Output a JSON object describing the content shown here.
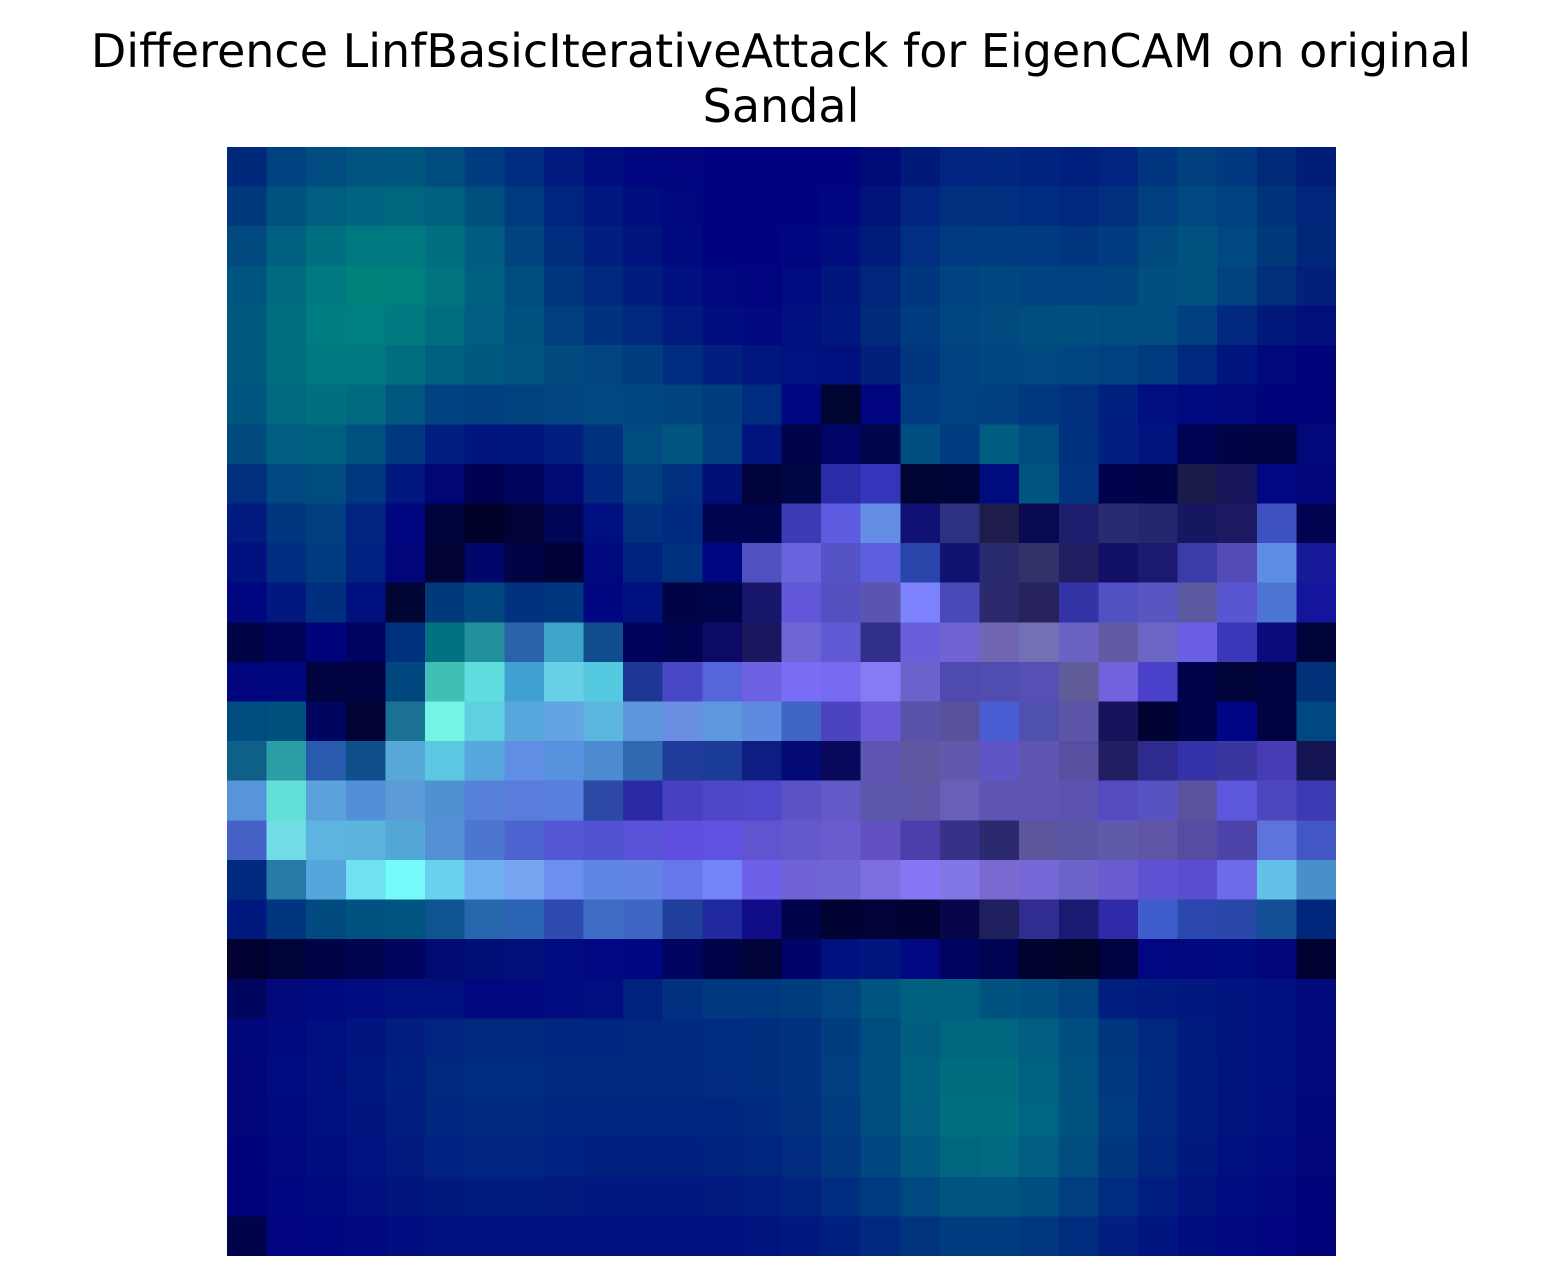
{
  "figure": {
    "title_line1": "Difference LinfBasicIterativeAttack for EigenCAM on original",
    "title_line2": "Sandal"
  },
  "heatmap": {
    "rows": 28,
    "cols": 28,
    "cells": [
      [
        "#00287a",
        "#00417f",
        "#004c80",
        "#00547f",
        "#00557f",
        "#004c80",
        "#003d80",
        "#002c7f",
        "#001a7f",
        "#000d7f",
        "#00067f",
        "#00047f",
        "#00037f",
        "#00037f",
        "#00037f",
        "#00037f",
        "#000b7a",
        "#001a7a",
        "#002480",
        "#00267f",
        "#00237f",
        "#00207f",
        "#00247f",
        "#00357f",
        "#00407f",
        "#00397f",
        "#00297a",
        "#001e78"
      ],
      [
        "#003a7c",
        "#005180",
        "#005e80",
        "#006480",
        "#006680",
        "#006080",
        "#00507f",
        "#003a7f",
        "#00257f",
        "#00177f",
        "#000d7f",
        "#00087f",
        "#00037f",
        "#00037f",
        "#00037f",
        "#00067f",
        "#00137a",
        "#002480",
        "#002f80",
        "#002f80",
        "#002c80",
        "#00287f",
        "#002f7f",
        "#003f7f",
        "#004880",
        "#004280",
        "#00337a",
        "#00257a"
      ],
      [
        "#004a80",
        "#006080",
        "#007080",
        "#007880",
        "#007a80",
        "#007080",
        "#005c80",
        "#00437f",
        "#002e7f",
        "#001f7f",
        "#00137f",
        "#000a7f",
        "#00037f",
        "#00037f",
        "#00067f",
        "#000d7f",
        "#001c7a",
        "#002e80",
        "#003a80",
        "#003d80",
        "#003a80",
        "#00367f",
        "#003c7f",
        "#004a80",
        "#005080",
        "#004880",
        "#00387a",
        "#00287a"
      ],
      [
        "#005480",
        "#006a80",
        "#007a80",
        "#00807a",
        "#007f7f",
        "#007580",
        "#006080",
        "#004c7f",
        "#00367f",
        "#00287f",
        "#001c7f",
        "#00107f",
        "#00077f",
        "#00047f",
        "#000b7f",
        "#00167f",
        "#00257a",
        "#003680",
        "#004380",
        "#004680",
        "#004380",
        "#00417f",
        "#00447f",
        "#004f80",
        "#005080",
        "#00437f",
        "#00307a",
        "#00207a"
      ],
      [
        "#005a80",
        "#006d80",
        "#007d80",
        "#007f80",
        "#007a80",
        "#006e80",
        "#005f80",
        "#005080",
        "#003f7f",
        "#00337f",
        "#00287f",
        "#001a7f",
        "#000d7f",
        "#00097f",
        "#00107f",
        "#00187f",
        "#002a7a",
        "#003b80",
        "#004680",
        "#004a80",
        "#004e80",
        "#004f80",
        "#004c80",
        "#004b80",
        "#00407f",
        "#00297f",
        "#00187a",
        "#000f7a"
      ],
      [
        "#005a80",
        "#006d80",
        "#007a80",
        "#007980",
        "#006e80",
        "#006080",
        "#005a80",
        "#00547f",
        "#004a7f",
        "#00457f",
        "#003d7f",
        "#002d7f",
        "#001f7f",
        "#00177f",
        "#00127f",
        "#00107f",
        "#00207a",
        "#003580",
        "#004380",
        "#004680",
        "#004880",
        "#004680",
        "#00427f",
        "#003a7f",
        "#00287f",
        "#00147f",
        "#00097a",
        "#00047a"
      ],
      [
        "#00567f",
        "#006880",
        "#007080",
        "#006a80",
        "#005880",
        "#004380",
        "#003f80",
        "#00437f",
        "#00457f",
        "#00487f",
        "#00477f",
        "#00447f",
        "#003d7f",
        "#002c7f",
        "#00067f",
        "#000431",
        "#00057f",
        "#003a80",
        "#004280",
        "#004080",
        "#00387f",
        "#00307f",
        "#00207f",
        "#000e7f",
        "#000a7f",
        "#00087a",
        "#00047a",
        "#00037a"
      ],
      [
        "#004a80",
        "#005e80",
        "#006080",
        "#005080",
        "#003880",
        "#001f80",
        "#00157f",
        "#00167f",
        "#001f7f",
        "#00327f",
        "#004b7f",
        "#00547f",
        "#003f7f",
        "#00137f",
        "#00034a",
        "#000566",
        "#00054c",
        "#004d80",
        "#003c80",
        "#005c80",
        "#004c80",
        "#00317f",
        "#001f7f",
        "#00137f",
        "#000252",
        "#000344",
        "#000440",
        "#00087a"
      ],
      [
        "#002f7f",
        "#00487f",
        "#004c80",
        "#00387f",
        "#00187f",
        "#000673",
        "#000150",
        "#00045c",
        "#000a74",
        "#00267f",
        "#00407f",
        "#002f7f",
        "#000f76",
        "#00033c",
        "#000644",
        "#2a2ba6",
        "#3335bc",
        "#000432",
        "#000538",
        "#000c7d",
        "#005480",
        "#003380",
        "#00024e",
        "#000346",
        "#1a1b48",
        "#19175c",
        "#000780",
        "#00057a"
      ],
      [
        "#001a7f",
        "#00357f",
        "#003e80",
        "#00247f",
        "#00067f",
        "#00023e",
        "#000128",
        "#000238",
        "#000555",
        "#000f7f",
        "#00307f",
        "#002a7f",
        "#000552",
        "#000550",
        "#3b3cb4",
        "#5d5be0",
        "#638ee4",
        "#101075",
        "#2e3082",
        "#1e1c4a",
        "#0a0a52",
        "#1d1e6e",
        "#2a2a73",
        "#25266e",
        "#161661",
        "#1d1a63",
        "#3e51c0",
        "#020350"
      ],
      [
        "#00107f",
        "#002d7f",
        "#003a80",
        "#00217f",
        "#00057a",
        "#000334",
        "#00066a",
        "#000344",
        "#000235",
        "#00087d",
        "#00227f",
        "#00317f",
        "#000580",
        "#5050c0",
        "#6a63de",
        "#5553c6",
        "#5c60de",
        "#2a45aa",
        "#121273",
        "#2a2a6f",
        "#32316a",
        "#211e62",
        "#121067",
        "#1b1970",
        "#3b3caa",
        "#534cb6",
        "#5e8ee4",
        "#161a99"
      ],
      [
        "#00067f",
        "#00187f",
        "#002e7f",
        "#00107f",
        "#000432",
        "#003879",
        "#004780",
        "#003280",
        "#003580",
        "#00067f",
        "#00107f",
        "#000446",
        "#000448",
        "#17166a",
        "#6157d8",
        "#5650c0",
        "#5a55b0",
        "#7b82fc",
        "#4949b9",
        "#2c2a6c",
        "#25225e",
        "#3433a6",
        "#5151c4",
        "#5a56c1",
        "#5b5aa0",
        "#5a55d1",
        "#4b75d1",
        "#13169c"
      ],
      [
        "#000346",
        "#000258",
        "#00047a",
        "#000360",
        "#00317f",
        "#007280",
        "#22919d",
        "#2b62a8",
        "#3ea4c9",
        "#124e8e",
        "#00035e",
        "#000350",
        "#0c0a66",
        "#19175e",
        "#6e66d4",
        "#6159d4",
        "#312f89",
        "#6a5fda",
        "#6e63d0",
        "#7066b4",
        "#7371b6",
        "#6b63c4",
        "#625aa4",
        "#6c66c6",
        "#6a5ee3",
        "#3a37b8",
        "#0a0b7d",
        "#00033a"
      ],
      [
        "#00057d",
        "#00067d",
        "#000340",
        "#000241",
        "#00477f",
        "#42bfb4",
        "#5fdddf",
        "#41a0d2",
        "#6ad0e8",
        "#55c9df",
        "#1d3894",
        "#4848c7",
        "#5665d9",
        "#6e62e3",
        "#7a6ef6",
        "#766bf0",
        "#857cf5",
        "#6a63cc",
        "#4f4ab0",
        "#514cb0",
        "#564fb4",
        "#5f5c98",
        "#7163dd",
        "#4a40ca",
        "#00034c",
        "#000338",
        "#000240",
        "#003078"
      ],
      [
        "#004c80",
        "#00507f",
        "#000560",
        "#000334",
        "#1a7193",
        "#73f4e4",
        "#5ed1e0",
        "#58a8de",
        "#63a4e2",
        "#5cb7de",
        "#5d96dc",
        "#6a8fe2",
        "#5e97de",
        "#5e8ae0",
        "#4065c6",
        "#4b43c0",
        "#6a5ad8",
        "#5852a8",
        "#58519c",
        "#4a5ed4",
        "#5051ae",
        "#5d55a8",
        "#16145a",
        "#000232",
        "#00034a",
        "#000584",
        "#000340",
        "#004882"
      ],
      [
        "#0e6089",
        "#2b9da5",
        "#285aad",
        "#0f4f8a",
        "#57a7d8",
        "#5cc7e0",
        "#56a8dc",
        "#5f8ee2",
        "#5591dc",
        "#4d8bd0",
        "#3168b2",
        "#1f3c9a",
        "#1b3b99",
        "#0d1d82",
        "#040a75",
        "#08095a",
        "#5f55b2",
        "#5f57a0",
        "#6259ad",
        "#5f55c6",
        "#5f56b2",
        "#574f9f",
        "#211e62",
        "#2f2a8e",
        "#3332a8",
        "#3b35a0",
        "#473cb6",
        "#151554"
      ],
      [
        "#5795db",
        "#62dfd7",
        "#5ba1db",
        "#5190d9",
        "#5a9bd8",
        "#4f91d1",
        "#5780d9",
        "#5a7cdb",
        "#5a7edd",
        "#2c49a5",
        "#2b2aa5",
        "#4741c1",
        "#4f46c6",
        "#5048ca",
        "#5b53c6",
        "#625ac6",
        "#5e58ad",
        "#5e57a8",
        "#6860b6",
        "#5e55b4",
        "#5f54b1",
        "#5b52b2",
        "#564ac1",
        "#5852c3",
        "#5a529f",
        "#5d58de",
        "#4c47bd",
        "#3d3ab3"
      ],
      [
        "#4762c6",
        "#6fdce6",
        "#5db4e0",
        "#5cb4dd",
        "#54a8d8",
        "#5590d7",
        "#4d76d0",
        "#4d64d0",
        "#5458d2",
        "#5052cf",
        "#5a52d9",
        "#6050e0",
        "#6052e0",
        "#6054d0",
        "#6458cd",
        "#6a5cce",
        "#6351c2",
        "#4b40ab",
        "#373187",
        "#2c2a6e",
        "#5e569d",
        "#5b55a5",
        "#5f5aa9",
        "#5f56a8",
        "#564da2",
        "#4c44a9",
        "#5c74dc",
        "#4256c4"
      ],
      [
        "#002a7f",
        "#267ba9",
        "#55a6db",
        "#6fe2f1",
        "#74fbfa",
        "#6ad1ec",
        "#6fb0ef",
        "#76a4f1",
        "#6d8ff0",
        "#5f86e2",
        "#6484e5",
        "#6876eb",
        "#7583f8",
        "#6e60e8",
        "#7262d8",
        "#7066d3",
        "#7d6ee2",
        "#8676f5",
        "#8277e7",
        "#7969d1",
        "#7568d6",
        "#6c64c8",
        "#6a5cd0",
        "#5f52d2",
        "#5a4ed0",
        "#6f6ae8",
        "#63c0e6",
        "#4890ca"
      ],
      [
        "#00197f",
        "#003680",
        "#004a80",
        "#005380",
        "#005580",
        "#0e5490",
        "#2767ad",
        "#2a63b2",
        "#2e4bb2",
        "#3f6dc5",
        "#3e67c4",
        "#21409e",
        "#1f299d",
        "#110c88",
        "#00034a",
        "#000232",
        "#000238",
        "#000232",
        "#07064a",
        "#21205f",
        "#312c90",
        "#1a1a72",
        "#312aa8",
        "#3f5ecb",
        "#2a48ad",
        "#2847a8",
        "#124f96",
        "#00267c"
      ],
      [
        "#000130",
        "#00023a",
        "#000345",
        "#000350",
        "#00045c",
        "#000a70",
        "#000f78",
        "#000f7a",
        "#000b80",
        "#000780",
        "#00067f",
        "#000360",
        "#000348",
        "#000238",
        "#00046a",
        "#00107f",
        "#00167f",
        "#000780",
        "#000460",
        "#000352",
        "#00022e",
        "#000228",
        "#000240",
        "#000780",
        "#000880",
        "#000a7f",
        "#00057a",
        "#000130"
      ],
      [
        "#000560",
        "#00087a",
        "#000a7f",
        "#000c80",
        "#00107f",
        "#00107f",
        "#00087f",
        "#00097f",
        "#000c7f",
        "#000e7f",
        "#00227f",
        "#00307f",
        "#00387f",
        "#00387f",
        "#003d7f",
        "#00457f",
        "#005480",
        "#006080",
        "#006080",
        "#005280",
        "#004e80",
        "#00437f",
        "#001e7f",
        "#001a7f",
        "#00187f",
        "#00147f",
        "#00107f",
        "#000a7a"
      ],
      [
        "#00077a",
        "#000a7f",
        "#000f7f",
        "#00157f",
        "#001d7f",
        "#00247f",
        "#00287f",
        "#00287f",
        "#00267f",
        "#00267f",
        "#00287f",
        "#002a7f",
        "#002c7f",
        "#002e7f",
        "#00327f",
        "#003d7f",
        "#004c80",
        "#005d80",
        "#006680",
        "#006780",
        "#005e80",
        "#004e7f",
        "#00367f",
        "#00287f",
        "#001b7f",
        "#00147f",
        "#00107f",
        "#00087a"
      ],
      [
        "#00067a",
        "#000b7f",
        "#00107f",
        "#00177f",
        "#00207f",
        "#00287f",
        "#002c7f",
        "#002c7f",
        "#002a7f",
        "#00287f",
        "#00287f",
        "#00297f",
        "#002b7f",
        "#002e7f",
        "#00327f",
        "#003e7f",
        "#004e80",
        "#006080",
        "#006c80",
        "#006c80",
        "#006280",
        "#005080",
        "#00397f",
        "#002a7f",
        "#001c7f",
        "#00147f",
        "#00107f",
        "#00087a"
      ],
      [
        "#00057a",
        "#000a7f",
        "#000f7f",
        "#00157f",
        "#001e7f",
        "#00267f",
        "#002a7f",
        "#002a7f",
        "#00277f",
        "#00257f",
        "#00257f",
        "#00257f",
        "#00277f",
        "#002a7f",
        "#002f7f",
        "#003b7f",
        "#004b80",
        "#005f80",
        "#006e80",
        "#007080",
        "#006580",
        "#00527f",
        "#003a7f",
        "#002a7f",
        "#001c7f",
        "#00137f",
        "#000e7f",
        "#00077a"
      ],
      [
        "#00047a",
        "#00087f",
        "#000d7f",
        "#00127f",
        "#001a7f",
        "#00217f",
        "#00247f",
        "#00247f",
        "#00217f",
        "#00207f",
        "#00207f",
        "#00207f",
        "#00227f",
        "#00257f",
        "#002b7f",
        "#00377f",
        "#004680",
        "#005880",
        "#006680",
        "#006880",
        "#005e80",
        "#004c7f",
        "#00367f",
        "#00267f",
        "#00197f",
        "#00107f",
        "#000b7f",
        "#00067a"
      ],
      [
        "#00037a",
        "#00067f",
        "#000a7f",
        "#000e7f",
        "#00147f",
        "#00197f",
        "#001c7f",
        "#001c7f",
        "#001a7f",
        "#00187f",
        "#00187f",
        "#00187f",
        "#001a7f",
        "#001d7f",
        "#00237f",
        "#002d7f",
        "#003a7f",
        "#004880",
        "#005480",
        "#005580",
        "#004d80",
        "#003e7f",
        "#002c7f",
        "#001e7f",
        "#00137f",
        "#000c7f",
        "#00087f",
        "#00047a"
      ],
      [
        "#00024a",
        "#00047f",
        "#00067f",
        "#00087f",
        "#000c7f",
        "#000f7f",
        "#00117f",
        "#00117f",
        "#00107f",
        "#000f7f",
        "#000f7f",
        "#00107f",
        "#00117f",
        "#00147f",
        "#00187f",
        "#00207f",
        "#00297f",
        "#00347f",
        "#003c80",
        "#003d80",
        "#00377f",
        "#002c7f",
        "#001f7f",
        "#00157f",
        "#000d7f",
        "#00087f",
        "#00057f",
        "#00027a"
      ]
    ]
  }
}
